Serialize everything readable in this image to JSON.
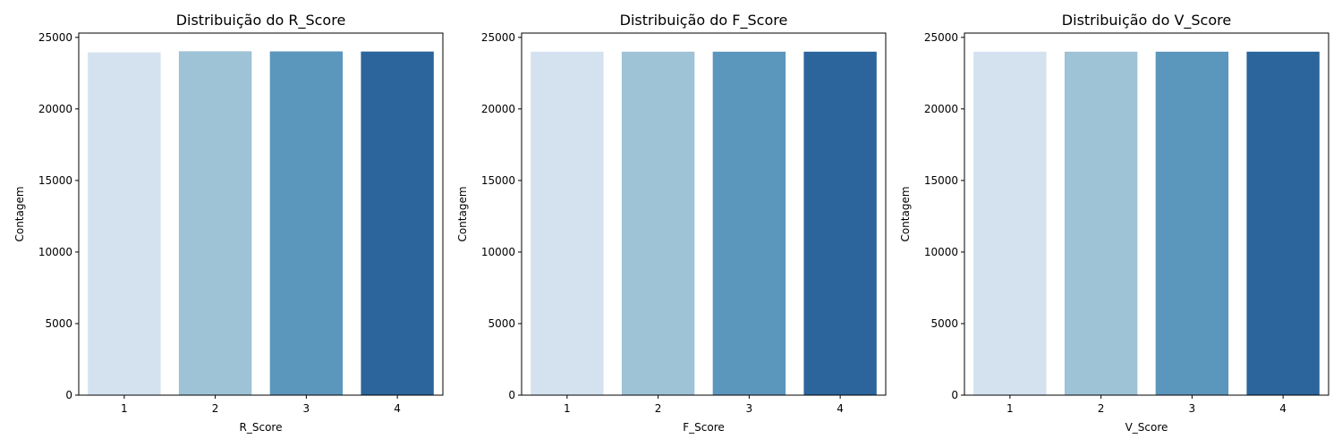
{
  "chart_data": [
    {
      "type": "bar",
      "title": "Distribuição do R_Score",
      "xlabel": "R_Score",
      "ylabel": "Contagem",
      "categories": [
        "1",
        "2",
        "3",
        "4"
      ],
      "values": [
        23950,
        24030,
        24020,
        24010
      ],
      "ylim": [
        0,
        25300
      ],
      "yticks": [
        0,
        5000,
        10000,
        15000,
        20000,
        25000
      ],
      "colors": [
        "#d4e2f0",
        "#9ec2d6",
        "#5b96bd",
        "#2b659c"
      ],
      "grid": false
    },
    {
      "type": "bar",
      "title": "Distribuição do F_Score",
      "xlabel": "F_Score",
      "ylabel": "Contagem",
      "categories": [
        "1",
        "2",
        "3",
        "4"
      ],
      "values": [
        24000,
        24000,
        24000,
        24000
      ],
      "ylim": [
        0,
        25300
      ],
      "yticks": [
        0,
        5000,
        10000,
        15000,
        20000,
        25000
      ],
      "colors": [
        "#d4e2f0",
        "#9ec2d6",
        "#5b96bd",
        "#2b659c"
      ],
      "grid": false
    },
    {
      "type": "bar",
      "title": "Distribuição do V_Score",
      "xlabel": "V_Score",
      "ylabel": "Contagem",
      "categories": [
        "1",
        "2",
        "3",
        "4"
      ],
      "values": [
        24000,
        24000,
        24000,
        24000
      ],
      "ylim": [
        0,
        25300
      ],
      "yticks": [
        0,
        5000,
        10000,
        15000,
        20000,
        25000
      ],
      "colors": [
        "#d4e2f0",
        "#9ec2d6",
        "#5b96bd",
        "#2b659c"
      ],
      "grid": false
    }
  ]
}
